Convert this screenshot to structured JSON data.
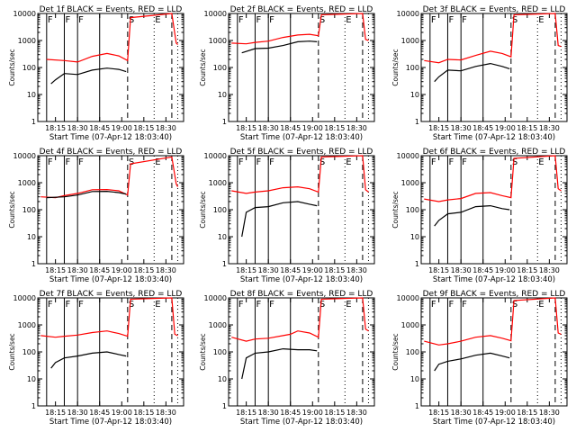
{
  "chart_data": {
    "type": "line",
    "layout": "3x3 grid of panels",
    "common": {
      "ylabel": "Counts/sec",
      "xlabel": "Start Time (07-Apr-12 18:03:40)",
      "x_tick_labels": [
        "18:15",
        "18:30",
        "18:45",
        "19:00",
        "18:15",
        "18:30"
      ],
      "y_tick_labels": [
        "1",
        "10",
        "100",
        "1000",
        "10000"
      ],
      "y_scale": "log",
      "ylim": [
        1,
        10000
      ],
      "series_colors": {
        "events": "#000000",
        "lld": "#ff0000"
      },
      "marker_labels": [
        "F",
        "S",
        "E"
      ]
    },
    "panels": [
      {
        "title": "Det 1f BLACK = Events, RED = LLD",
        "solid_markers": [
          "18:09",
          "18:21",
          "18:30",
          "18:45"
        ],
        "dashed_markers": [
          "19:04",
          "19:34"
        ],
        "dotted_markers": [
          "19:22",
          "19:38"
        ],
        "marker_letters": [
          {
            "label": "F",
            "at": "18:09"
          },
          {
            "label": "F",
            "at": "18:21"
          },
          {
            "label": "F",
            "at": "18:30"
          },
          {
            "label": "S",
            "at": "19:04"
          },
          {
            "label": "E",
            "at": "19:22"
          }
        ],
        "lld": [
          [
            "18:09",
            200
          ],
          [
            "18:21",
            180
          ],
          [
            "18:30",
            160
          ],
          [
            "18:40",
            260
          ],
          [
            "18:50",
            330
          ],
          [
            "18:58",
            270
          ],
          [
            "19:04",
            180
          ],
          [
            "19:06",
            7000
          ],
          [
            "19:34",
            10000
          ],
          [
            "19:37",
            800
          ],
          [
            "19:38",
            700
          ]
        ],
        "events": [
          [
            "18:12",
            25
          ],
          [
            "18:15",
            35
          ],
          [
            "18:21",
            60
          ],
          [
            "18:30",
            55
          ],
          [
            "18:40",
            80
          ],
          [
            "18:50",
            95
          ],
          [
            "18:58",
            85
          ],
          [
            "19:03",
            70
          ]
        ]
      },
      {
        "title": "Det 2f BLACK = Events, RED = LLD",
        "solid_markers": [
          "18:09",
          "18:21",
          "18:30",
          "18:45"
        ],
        "dashed_markers": [
          "19:04",
          "19:34"
        ],
        "dotted_markers": [
          "19:22",
          "19:38"
        ],
        "marker_letters": [
          {
            "label": "F",
            "at": "18:09"
          },
          {
            "label": "F",
            "at": "18:21"
          },
          {
            "label": "F",
            "at": "18:30"
          },
          {
            "label": "S",
            "at": "19:04"
          },
          {
            "label": "E",
            "at": "19:22"
          }
        ],
        "lld": [
          [
            "18:05",
            800
          ],
          [
            "18:15",
            750
          ],
          [
            "18:21",
            850
          ],
          [
            "18:30",
            950
          ],
          [
            "18:40",
            1300
          ],
          [
            "18:50",
            1600
          ],
          [
            "18:58",
            1700
          ],
          [
            "19:04",
            1500
          ],
          [
            "19:06",
            9000
          ],
          [
            "19:34",
            10000
          ],
          [
            "19:36",
            1100
          ],
          [
            "19:38",
            1000
          ]
        ],
        "events": [
          [
            "18:12",
            350
          ],
          [
            "18:21",
            500
          ],
          [
            "18:30",
            520
          ],
          [
            "18:40",
            650
          ],
          [
            "18:50",
            900
          ],
          [
            "18:58",
            950
          ],
          [
            "19:03",
            900
          ]
        ]
      },
      {
        "title": "Det 3f BLACK = Events, RED = LLD",
        "solid_markers": [
          "18:09",
          "18:21",
          "18:30",
          "18:45"
        ],
        "dashed_markers": [
          "19:04",
          "19:34"
        ],
        "dotted_markers": [
          "19:22",
          "19:38"
        ],
        "marker_letters": [
          {
            "label": "F",
            "at": "18:09"
          },
          {
            "label": "F",
            "at": "18:21"
          },
          {
            "label": "F",
            "at": "18:30"
          },
          {
            "label": "S",
            "at": "19:04"
          },
          {
            "label": "E",
            "at": "19:22"
          }
        ],
        "lld": [
          [
            "18:05",
            180
          ],
          [
            "18:15",
            150
          ],
          [
            "18:21",
            200
          ],
          [
            "18:30",
            190
          ],
          [
            "18:40",
            280
          ],
          [
            "18:50",
            400
          ],
          [
            "18:58",
            330
          ],
          [
            "19:04",
            250
          ],
          [
            "19:06",
            9000
          ],
          [
            "19:34",
            10000
          ],
          [
            "19:36",
            650
          ],
          [
            "19:38",
            600
          ]
        ],
        "events": [
          [
            "18:12",
            30
          ],
          [
            "18:15",
            45
          ],
          [
            "18:21",
            80
          ],
          [
            "18:30",
            75
          ],
          [
            "18:40",
            110
          ],
          [
            "18:50",
            140
          ],
          [
            "18:58",
            110
          ],
          [
            "19:03",
            90
          ]
        ]
      },
      {
        "title": "Det 4f BLACK = Events, RED = LLD",
        "solid_markers": [
          "18:09",
          "18:21",
          "18:30",
          "18:45"
        ],
        "dashed_markers": [
          "19:04",
          "19:34"
        ],
        "dotted_markers": [
          "19:22",
          "19:38"
        ],
        "marker_letters": [
          {
            "label": "F",
            "at": "18:09"
          },
          {
            "label": "F",
            "at": "18:21"
          },
          {
            "label": "F",
            "at": "18:30"
          },
          {
            "label": "S",
            "at": "19:04"
          },
          {
            "label": "E",
            "at": "19:22"
          }
        ],
        "lld": [
          [
            "18:05",
            300
          ],
          [
            "18:15",
            280
          ],
          [
            "18:21",
            330
          ],
          [
            "18:30",
            400
          ],
          [
            "18:40",
            550
          ],
          [
            "18:50",
            560
          ],
          [
            "18:58",
            500
          ],
          [
            "19:04",
            350
          ],
          [
            "19:06",
            5000
          ],
          [
            "19:34",
            9000
          ],
          [
            "19:37",
            900
          ],
          [
            "19:38",
            700
          ]
        ],
        "events": [
          [
            "18:09",
            280
          ],
          [
            "18:21",
            300
          ],
          [
            "18:30",
            350
          ],
          [
            "18:40",
            470
          ],
          [
            "18:50",
            480
          ],
          [
            "18:58",
            430
          ],
          [
            "19:03",
            380
          ]
        ]
      },
      {
        "title": "Det 5f BLACK = Events, RED = LLD",
        "solid_markers": [
          "18:09",
          "18:21",
          "18:30",
          "18:45"
        ],
        "dashed_markers": [
          "19:04",
          "19:34"
        ],
        "dotted_markers": [
          "19:22",
          "19:38"
        ],
        "marker_letters": [
          {
            "label": "F",
            "at": "18:09"
          },
          {
            "label": "F",
            "at": "18:21"
          },
          {
            "label": "F",
            "at": "18:30"
          },
          {
            "label": "S",
            "at": "19:04"
          },
          {
            "label": "E",
            "at": "19:22"
          }
        ],
        "lld": [
          [
            "18:05",
            500
          ],
          [
            "18:15",
            400
          ],
          [
            "18:21",
            450
          ],
          [
            "18:30",
            500
          ],
          [
            "18:40",
            650
          ],
          [
            "18:50",
            700
          ],
          [
            "18:58",
            600
          ],
          [
            "19:04",
            450
          ],
          [
            "19:06",
            9000
          ],
          [
            "19:34",
            10000
          ],
          [
            "19:36",
            550
          ],
          [
            "19:38",
            450
          ]
        ],
        "events": [
          [
            "18:12",
            10
          ],
          [
            "18:15",
            80
          ],
          [
            "18:21",
            120
          ],
          [
            "18:30",
            130
          ],
          [
            "18:40",
            180
          ],
          [
            "18:50",
            200
          ],
          [
            "18:58",
            160
          ],
          [
            "19:03",
            140
          ]
        ]
      },
      {
        "title": "Det 6f BLACK = Events, RED = LLD",
        "solid_markers": [
          "18:09",
          "18:21",
          "18:30",
          "18:45"
        ],
        "dashed_markers": [
          "19:04",
          "19:34"
        ],
        "dotted_markers": [
          "19:22",
          "19:38"
        ],
        "marker_letters": [
          {
            "label": "F",
            "at": "18:09"
          },
          {
            "label": "F",
            "at": "18:21"
          },
          {
            "label": "F",
            "at": "18:30"
          },
          {
            "label": "S",
            "at": "19:04"
          },
          {
            "label": "E",
            "at": "19:22"
          }
        ],
        "lld": [
          [
            "18:05",
            250
          ],
          [
            "18:15",
            200
          ],
          [
            "18:21",
            230
          ],
          [
            "18:30",
            260
          ],
          [
            "18:40",
            400
          ],
          [
            "18:50",
            430
          ],
          [
            "18:58",
            330
          ],
          [
            "19:04",
            280
          ],
          [
            "19:06",
            8000
          ],
          [
            "19:34",
            10000
          ],
          [
            "19:36",
            600
          ],
          [
            "19:38",
            500
          ]
        ],
        "events": [
          [
            "18:12",
            25
          ],
          [
            "18:15",
            40
          ],
          [
            "18:21",
            70
          ],
          [
            "18:30",
            80
          ],
          [
            "18:40",
            130
          ],
          [
            "18:50",
            140
          ],
          [
            "18:58",
            110
          ],
          [
            "19:03",
            100
          ]
        ]
      },
      {
        "title": "Det 7f BLACK = Events, RED = LLD",
        "solid_markers": [
          "18:09",
          "18:21",
          "18:30",
          "18:45"
        ],
        "dashed_markers": [
          "19:04",
          "19:34"
        ],
        "dotted_markers": [
          "19:22",
          "19:38"
        ],
        "marker_letters": [
          {
            "label": "F",
            "at": "18:09"
          },
          {
            "label": "F",
            "at": "18:21"
          },
          {
            "label": "F",
            "at": "18:30"
          },
          {
            "label": "S",
            "at": "19:04"
          },
          {
            "label": "E",
            "at": "19:22"
          }
        ],
        "lld": [
          [
            "18:05",
            400
          ],
          [
            "18:15",
            350
          ],
          [
            "18:21",
            380
          ],
          [
            "18:30",
            420
          ],
          [
            "18:40",
            520
          ],
          [
            "18:50",
            600
          ],
          [
            "18:58",
            480
          ],
          [
            "19:04",
            380
          ],
          [
            "19:06",
            9000
          ],
          [
            "19:34",
            10000
          ],
          [
            "19:36",
            450
          ],
          [
            "19:38",
            400
          ]
        ],
        "events": [
          [
            "18:12",
            25
          ],
          [
            "18:15",
            40
          ],
          [
            "18:21",
            60
          ],
          [
            "18:30",
            70
          ],
          [
            "18:40",
            90
          ],
          [
            "18:50",
            100
          ],
          [
            "18:58",
            80
          ],
          [
            "19:03",
            70
          ]
        ]
      },
      {
        "title": "Det 8f BLACK = Events, RED = LLD",
        "solid_markers": [
          "18:09",
          "18:21",
          "18:30",
          "18:45"
        ],
        "dashed_markers": [
          "19:04",
          "19:34"
        ],
        "dotted_markers": [
          "19:22",
          "19:38"
        ],
        "marker_letters": [
          {
            "label": "F",
            "at": "18:09"
          },
          {
            "label": "F",
            "at": "18:21"
          },
          {
            "label": "F",
            "at": "18:30"
          },
          {
            "label": "S",
            "at": "19:04"
          },
          {
            "label": "E",
            "at": "19:22"
          }
        ],
        "lld": [
          [
            "18:05",
            350
          ],
          [
            "18:15",
            250
          ],
          [
            "18:21",
            300
          ],
          [
            "18:30",
            320
          ],
          [
            "18:40",
            400
          ],
          [
            "18:45",
            450
          ],
          [
            "18:50",
            600
          ],
          [
            "18:58",
            500
          ],
          [
            "19:04",
            350
          ],
          [
            "19:06",
            9000
          ],
          [
            "19:34",
            10000
          ],
          [
            "19:36",
            700
          ],
          [
            "19:38",
            600
          ]
        ],
        "events": [
          [
            "18:12",
            10
          ],
          [
            "18:15",
            60
          ],
          [
            "18:21",
            90
          ],
          [
            "18:30",
            100
          ],
          [
            "18:40",
            130
          ],
          [
            "18:50",
            120
          ],
          [
            "18:58",
            120
          ],
          [
            "19:03",
            110
          ]
        ]
      },
      {
        "title": "Det 9f BLACK = Events, RED = LLD",
        "solid_markers": [
          "18:09",
          "18:21",
          "18:30",
          "18:45"
        ],
        "dashed_markers": [
          "19:04",
          "19:34"
        ],
        "dotted_markers": [
          "19:22",
          "19:38"
        ],
        "marker_letters": [
          {
            "label": "F",
            "at": "18:09"
          },
          {
            "label": "F",
            "at": "18:21"
          },
          {
            "label": "F",
            "at": "18:30"
          },
          {
            "label": "S",
            "at": "19:04"
          },
          {
            "label": "E",
            "at": "19:22"
          }
        ],
        "lld": [
          [
            "18:05",
            250
          ],
          [
            "18:15",
            180
          ],
          [
            "18:21",
            200
          ],
          [
            "18:30",
            250
          ],
          [
            "18:40",
            350
          ],
          [
            "18:50",
            400
          ],
          [
            "18:58",
            320
          ],
          [
            "19:04",
            260
          ],
          [
            "19:06",
            8000
          ],
          [
            "19:34",
            10000
          ],
          [
            "19:36",
            500
          ],
          [
            "19:38",
            450
          ]
        ],
        "events": [
          [
            "18:12",
            20
          ],
          [
            "18:15",
            35
          ],
          [
            "18:21",
            45
          ],
          [
            "18:30",
            55
          ],
          [
            "18:40",
            75
          ],
          [
            "18:50",
            90
          ],
          [
            "18:58",
            70
          ],
          [
            "19:03",
            60
          ]
        ]
      }
    ]
  }
}
